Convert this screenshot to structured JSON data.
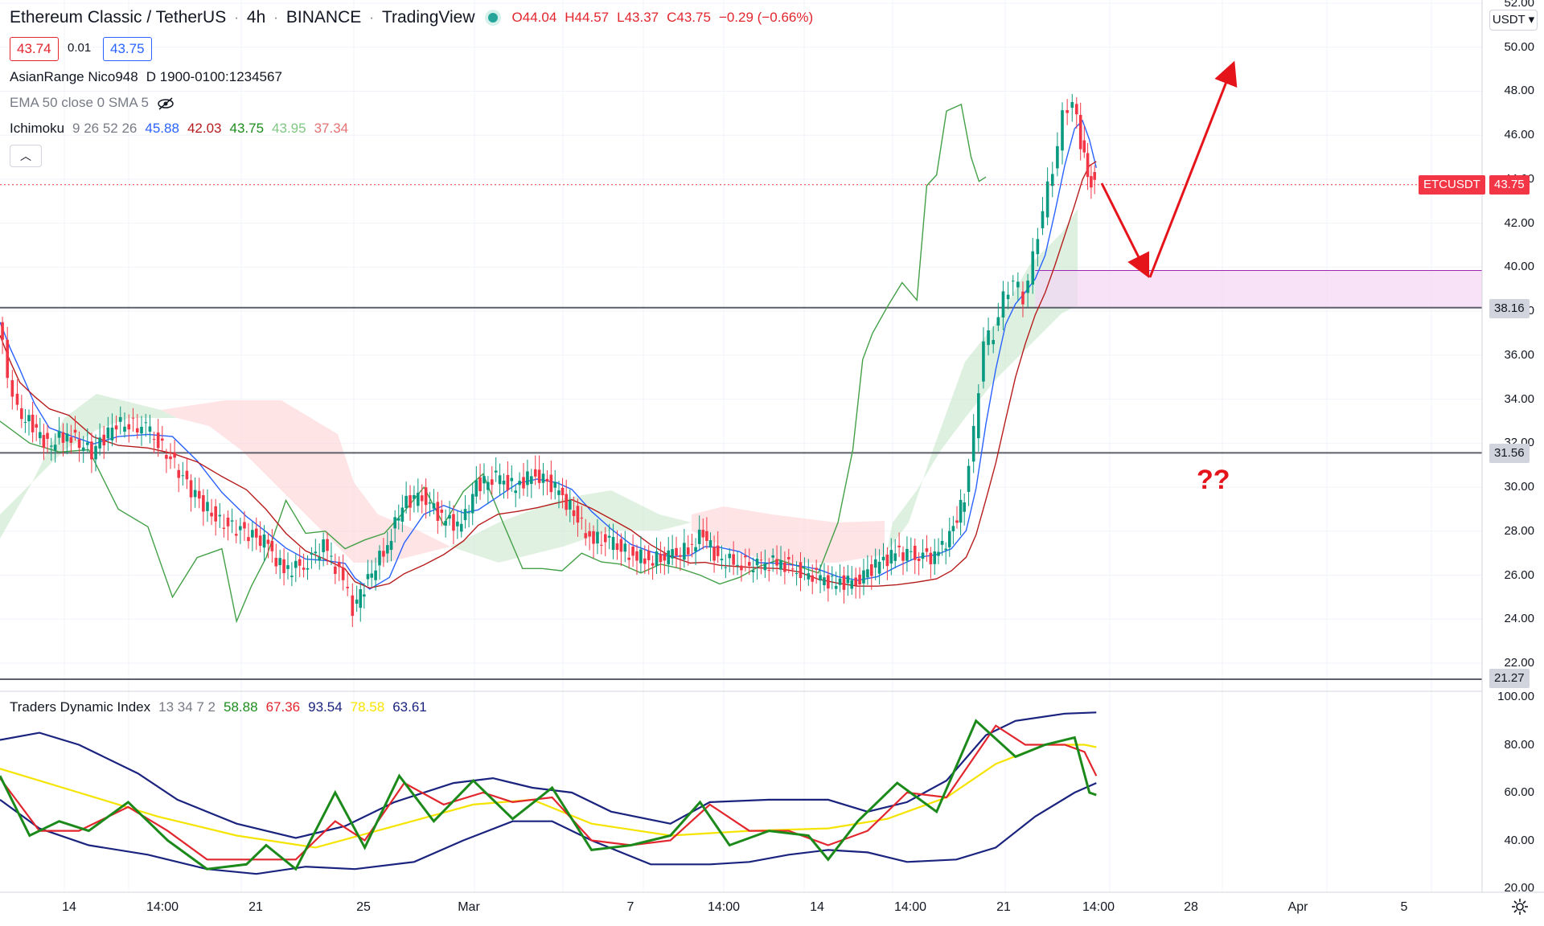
{
  "header": {
    "symbol_title": "Ethereum Classic / TetherUS",
    "interval": "4h",
    "exchange": "BINANCE",
    "source": "TradingView",
    "open": "O44.04",
    "high": "H44.57",
    "low": "L43.37",
    "close": "C43.75",
    "change": "−0.29 (−0.66%)"
  },
  "trade": {
    "bid": "43.74",
    "spread": "0.01",
    "ask": "43.75"
  },
  "indicators": {
    "asian_range": "AsianRange Nico948",
    "asian_range_params": "D 1900-0100:1234567",
    "ema_label": "EMA 50 close 0 SMA 5",
    "ichimoku_label": "Ichimoku",
    "ichimoku_params": "9 26 52 26",
    "ichimoku_values": [
      "45.88",
      "42.03",
      "43.75",
      "43.95",
      "37.34"
    ],
    "tdi_label": "Traders Dynamic Index",
    "tdi_params": "13 34 7 2",
    "tdi_values": [
      "58.88",
      "67.36",
      "93.54",
      "78.58",
      "63.61"
    ]
  },
  "price_axis": {
    "currency": "USDT",
    "ticks": [
      "52.00",
      "50.00",
      "48.00",
      "46.00",
      "44.00",
      "42.00",
      "40.00",
      "38.00",
      "36.00",
      "34.00",
      "32.00",
      "30.00",
      "28.00",
      "26.00",
      "24.00",
      "22.00"
    ],
    "tags": {
      "symbol": "ETCUSDT",
      "last": "43.75",
      "level1": "38.16",
      "level2": "31.56",
      "level3": "21.27"
    }
  },
  "tdi_axis": {
    "ticks": [
      "100.00",
      "80.00",
      "60.00",
      "40.00",
      "20.00"
    ]
  },
  "time_axis": {
    "labels": [
      "14",
      "14:00",
      "21",
      "25",
      "Mar",
      "7",
      "14:00",
      "14",
      "14:00",
      "21",
      "14:00",
      "28",
      "Apr",
      "5"
    ]
  },
  "annotation": {
    "question": "??"
  },
  "colors": {
    "up": "#26a69a",
    "down": "#ef5350",
    "candle_green": "#089981",
    "candle_red": "#f23645",
    "tenkan": "#2962ff",
    "kijun": "#b71c1c",
    "lagging": "#43a047",
    "arrow": "#e5141b",
    "zone": "#f3d6f5"
  },
  "chart_data": {
    "type": "candlestick",
    "symbol": "ETCUSDT",
    "ylim": [
      21,
      52
    ],
    "levels": [
      38.16,
      31.56,
      21.27
    ],
    "last_price": 43.75,
    "zone": [
      38.16,
      39.85
    ],
    "close_path": [
      [
        0,
        37.5
      ],
      [
        10,
        35.2
      ],
      [
        20,
        33.4
      ],
      [
        35,
        32.8
      ],
      [
        50,
        31.9
      ],
      [
        70,
        32.4
      ],
      [
        95,
        31.6
      ],
      [
        120,
        32.9
      ],
      [
        150,
        32.7
      ],
      [
        175,
        31.3
      ],
      [
        200,
        29.6
      ],
      [
        225,
        28.4
      ],
      [
        250,
        28.0
      ],
      [
        270,
        27.5
      ],
      [
        290,
        26.2
      ],
      [
        310,
        26.5
      ],
      [
        330,
        27.3
      ],
      [
        350,
        25.8
      ],
      [
        360,
        24.5
      ],
      [
        375,
        25.8
      ],
      [
        395,
        27.4
      ],
      [
        410,
        29.2
      ],
      [
        430,
        29.7
      ],
      [
        450,
        28.6
      ],
      [
        470,
        28.2
      ],
      [
        485,
        30.1
      ],
      [
        505,
        30.4
      ],
      [
        525,
        30.0
      ],
      [
        545,
        30.7
      ],
      [
        565,
        29.9
      ],
      [
        580,
        29.1
      ],
      [
        600,
        27.7
      ],
      [
        620,
        27.5
      ],
      [
        640,
        27.0
      ],
      [
        660,
        26.7
      ],
      [
        680,
        26.8
      ],
      [
        700,
        27.2
      ],
      [
        715,
        27.9
      ],
      [
        730,
        26.7
      ],
      [
        750,
        26.6
      ],
      [
        770,
        26.4
      ],
      [
        790,
        26.6
      ],
      [
        810,
        26.3
      ],
      [
        830,
        25.9
      ],
      [
        850,
        25.6
      ],
      [
        870,
        25.8
      ],
      [
        890,
        26.4
      ],
      [
        910,
        27.0
      ],
      [
        930,
        27.0
      ],
      [
        950,
        26.8
      ],
      [
        965,
        27.8
      ],
      [
        980,
        29.5
      ],
      [
        990,
        32.5
      ],
      [
        1000,
        36.6
      ],
      [
        1010,
        37.0
      ],
      [
        1020,
        38.6
      ],
      [
        1030,
        39.4
      ],
      [
        1040,
        38.6
      ],
      [
        1050,
        40.4
      ],
      [
        1060,
        42.6
      ],
      [
        1070,
        44.5
      ],
      [
        1080,
        46.8
      ],
      [
        1090,
        47.6
      ],
      [
        1098,
        45.6
      ],
      [
        1105,
        44.2
      ],
      [
        1112,
        43.75
      ]
    ],
    "lagging_span": [
      [
        0,
        33.0
      ],
      [
        30,
        32.0
      ],
      [
        60,
        31.6
      ],
      [
        90,
        31.7
      ],
      [
        120,
        29.0
      ],
      [
        150,
        28.2
      ],
      [
        175,
        25.0
      ],
      [
        200,
        26.8
      ],
      [
        225,
        27.2
      ],
      [
        240,
        23.9
      ],
      [
        255,
        25.5
      ],
      [
        270,
        26.8
      ],
      [
        290,
        29.4
      ],
      [
        310,
        27.9
      ],
      [
        330,
        28.0
      ],
      [
        350,
        27.2
      ],
      [
        370,
        27.6
      ],
      [
        390,
        27.9
      ],
      [
        410,
        28.9
      ],
      [
        430,
        30.0
      ],
      [
        450,
        28.3
      ],
      [
        470,
        29.8
      ],
      [
        490,
        30.6
      ],
      [
        510,
        28.4
      ],
      [
        530,
        26.3
      ],
      [
        550,
        26.3
      ],
      [
        570,
        26.2
      ],
      [
        590,
        27.0
      ],
      [
        610,
        26.6
      ],
      [
        630,
        26.5
      ],
      [
        650,
        26.1
      ],
      [
        670,
        26.5
      ],
      [
        690,
        26.3
      ],
      [
        710,
        26.0
      ],
      [
        730,
        25.6
      ],
      [
        750,
        25.9
      ],
      [
        770,
        26.4
      ],
      [
        790,
        26.7
      ],
      [
        810,
        26.4
      ],
      [
        830,
        26.1
      ],
      [
        850,
        28.4
      ],
      [
        865,
        31.7
      ],
      [
        875,
        35.8
      ],
      [
        885,
        37.0
      ],
      [
        900,
        38.2
      ],
      [
        915,
        39.3
      ],
      [
        930,
        38.5
      ],
      [
        940,
        43.7
      ],
      [
        950,
        44.2
      ],
      [
        960,
        47.1
      ],
      [
        975,
        47.4
      ],
      [
        985,
        45.0
      ],
      [
        993,
        43.9
      ],
      [
        1000,
        44.1
      ]
    ],
    "tdi_series": {
      "rsi_price_line": [
        [
          0,
          67
        ],
        [
          30,
          42
        ],
        [
          60,
          48
        ],
        [
          90,
          44
        ],
        [
          130,
          56
        ],
        [
          170,
          40
        ],
        [
          210,
          28
        ],
        [
          250,
          30
        ],
        [
          270,
          38
        ],
        [
          300,
          28
        ],
        [
          340,
          60
        ],
        [
          370,
          37
        ],
        [
          405,
          67
        ],
        [
          440,
          48
        ],
        [
          480,
          65
        ],
        [
          520,
          49
        ],
        [
          560,
          62
        ],
        [
          600,
          36
        ],
        [
          640,
          38
        ],
        [
          680,
          42
        ],
        [
          710,
          56
        ],
        [
          740,
          38
        ],
        [
          780,
          44
        ],
        [
          820,
          42
        ],
        [
          840,
          32
        ],
        [
          870,
          48
        ],
        [
          910,
          64
        ],
        [
          950,
          52
        ],
        [
          990,
          90
        ],
        [
          1030,
          75
        ],
        [
          1060,
          80
        ],
        [
          1090,
          83
        ],
        [
          1105,
          60
        ],
        [
          1112,
          59
        ]
      ],
      "signal_line": [
        [
          0,
          66
        ],
        [
          40,
          44
        ],
        [
          80,
          44
        ],
        [
          130,
          54
        ],
        [
          170,
          44
        ],
        [
          210,
          32
        ],
        [
          250,
          32
        ],
        [
          300,
          32
        ],
        [
          340,
          48
        ],
        [
          370,
          40
        ],
        [
          410,
          64
        ],
        [
          450,
          55
        ],
        [
          490,
          60
        ],
        [
          520,
          56
        ],
        [
          560,
          58
        ],
        [
          600,
          40
        ],
        [
          640,
          38
        ],
        [
          680,
          40
        ],
        [
          720,
          55
        ],
        [
          760,
          44
        ],
        [
          800,
          44
        ],
        [
          840,
          38
        ],
        [
          880,
          44
        ],
        [
          920,
          60
        ],
        [
          960,
          58
        ],
        [
          1010,
          88
        ],
        [
          1040,
          80
        ],
        [
          1080,
          80
        ],
        [
          1100,
          77
        ],
        [
          1112,
          67
        ]
      ],
      "market_base": [
        [
          0,
          70
        ],
        [
          80,
          60
        ],
        [
          160,
          50
        ],
        [
          240,
          42
        ],
        [
          320,
          37
        ],
        [
          400,
          46
        ],
        [
          480,
          55
        ],
        [
          540,
          57
        ],
        [
          600,
          47
        ],
        [
          680,
          42
        ],
        [
          760,
          44
        ],
        [
          840,
          45
        ],
        [
          900,
          49
        ],
        [
          960,
          58
        ],
        [
          1010,
          72
        ],
        [
          1060,
          80
        ],
        [
          1100,
          80
        ],
        [
          1112,
          79
        ]
      ],
      "upper_band": [
        [
          0,
          82
        ],
        [
          40,
          85
        ],
        [
          80,
          80
        ],
        [
          140,
          68
        ],
        [
          180,
          57
        ],
        [
          240,
          47
        ],
        [
          300,
          41
        ],
        [
          350,
          46
        ],
        [
          400,
          56
        ],
        [
          460,
          64
        ],
        [
          500,
          66
        ],
        [
          540,
          62
        ],
        [
          580,
          60
        ],
        [
          620,
          52
        ],
        [
          680,
          47
        ],
        [
          720,
          56
        ],
        [
          780,
          57
        ],
        [
          840,
          57
        ],
        [
          880,
          52
        ],
        [
          920,
          56
        ],
        [
          960,
          65
        ],
        [
          1000,
          84
        ],
        [
          1030,
          90
        ],
        [
          1080,
          93
        ],
        [
          1112,
          93.5
        ]
      ],
      "lower_band": [
        [
          0,
          57
        ],
        [
          40,
          45
        ],
        [
          90,
          38
        ],
        [
          150,
          34
        ],
        [
          210,
          28
        ],
        [
          260,
          26
        ],
        [
          310,
          29
        ],
        [
          360,
          28
        ],
        [
          420,
          31
        ],
        [
          470,
          40
        ],
        [
          520,
          48
        ],
        [
          560,
          48
        ],
        [
          600,
          40
        ],
        [
          660,
          30
        ],
        [
          720,
          30
        ],
        [
          760,
          31
        ],
        [
          800,
          34
        ],
        [
          840,
          36
        ],
        [
          880,
          35
        ],
        [
          920,
          31
        ],
        [
          970,
          32
        ],
        [
          1010,
          37
        ],
        [
          1050,
          50
        ],
        [
          1090,
          60
        ],
        [
          1112,
          64
        ]
      ]
    }
  }
}
